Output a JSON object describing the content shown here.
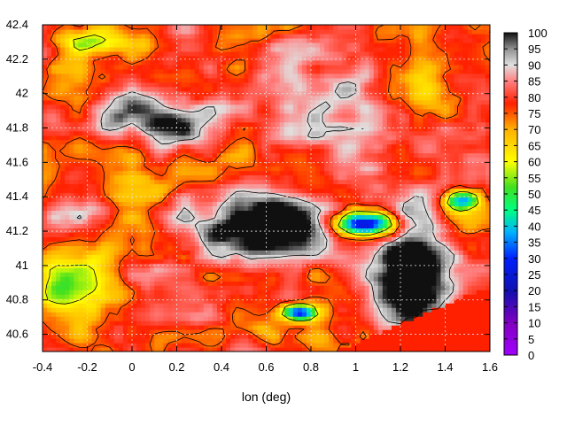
{
  "chart_data": {
    "type": "heatmap",
    "title": "",
    "xlabel": "lon (deg)",
    "ylabel": "",
    "xlim": [
      -0.4,
      1.6
    ],
    "ylim": [
      40.5,
      42.4
    ],
    "x_ticks": [
      "-0.4",
      "-0.2",
      "0",
      "0.2",
      "0.4",
      "0.6",
      "0.8",
      "1",
      "1.2",
      "1.4",
      "1.6"
    ],
    "y_ticks": [
      "40.6",
      "40.8",
      "41",
      "41.2",
      "41.4",
      "41.6",
      "41.8",
      "42",
      "42.2",
      "42.4"
    ],
    "colorbar": {
      "min": 0,
      "max": 100,
      "ticks": [
        "0",
        "5",
        "10",
        "15",
        "20",
        "25",
        "30",
        "35",
        "40",
        "45",
        "50",
        "55",
        "60",
        "65",
        "70",
        "75",
        "80",
        "85",
        "90",
        "95",
        "100"
      ],
      "stops": [
        {
          "value": 0,
          "color": "#a000ff"
        },
        {
          "value": 10,
          "color": "#8000c0"
        },
        {
          "value": 20,
          "color": "#1010b0"
        },
        {
          "value": 30,
          "color": "#0020ff"
        },
        {
          "value": 38,
          "color": "#00b0ff"
        },
        {
          "value": 45,
          "color": "#00ff80"
        },
        {
          "value": 52,
          "color": "#40e020"
        },
        {
          "value": 60,
          "color": "#ffff00"
        },
        {
          "value": 70,
          "color": "#ffb000"
        },
        {
          "value": 78,
          "color": "#ff2000"
        },
        {
          "value": 85,
          "color": "#ff8080"
        },
        {
          "value": 90,
          "color": "#e0e0e0"
        },
        {
          "value": 95,
          "color": "#909090"
        },
        {
          "value": 100,
          "color": "#101010"
        }
      ]
    },
    "grid": true,
    "contours": true
  }
}
